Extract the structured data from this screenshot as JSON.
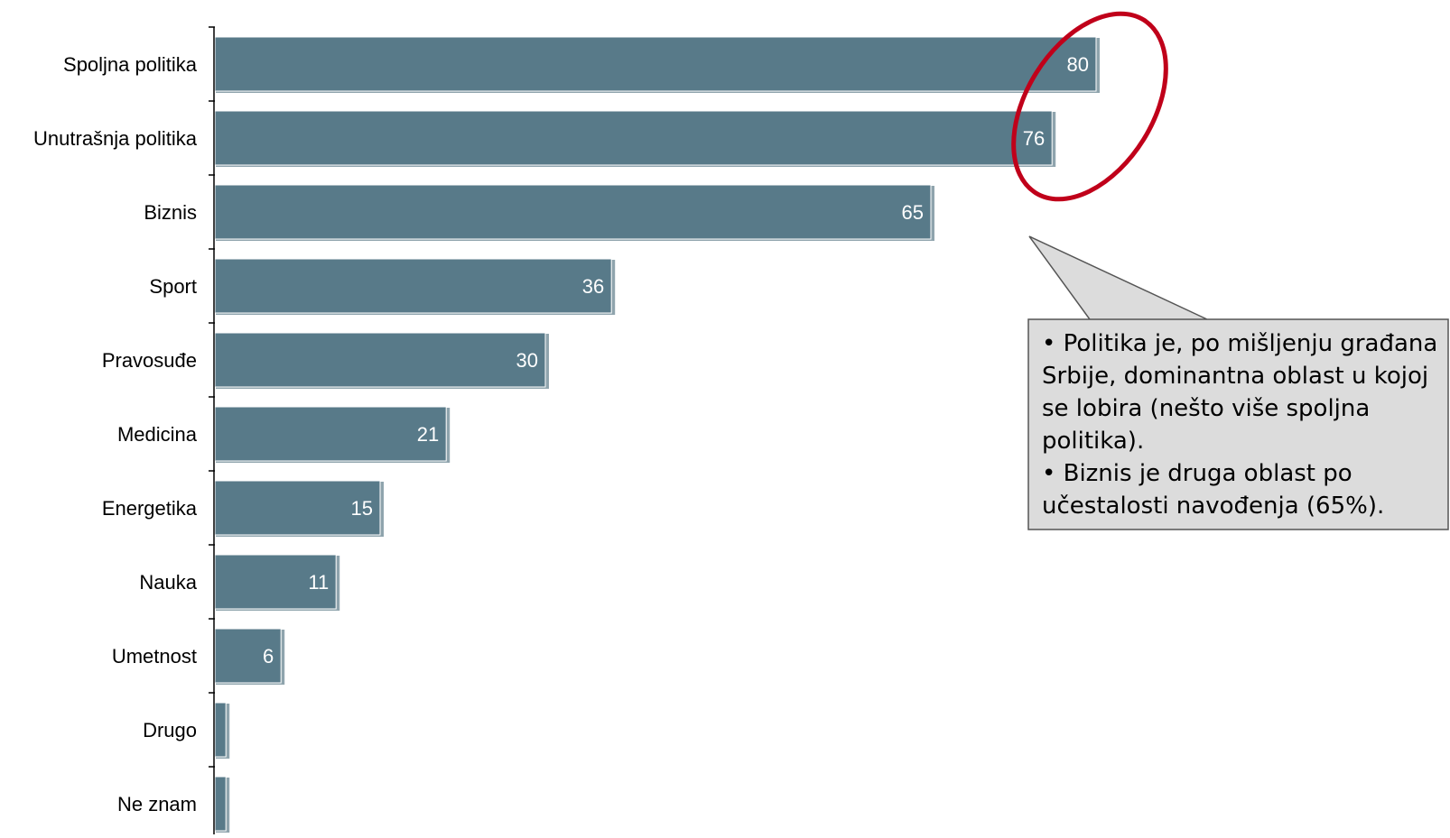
{
  "chart_data": {
    "type": "bar",
    "orientation": "horizontal",
    "categories": [
      "Spoljna politika",
      "Unutrašnja politika",
      "Biznis",
      "Sport",
      "Pravosuđe",
      "Medicina",
      "Energetika",
      "Nauka",
      "Umetnost",
      "Drugo",
      "Ne znam"
    ],
    "values": [
      80,
      76,
      65,
      36,
      30,
      21,
      15,
      11,
      6,
      1,
      1
    ],
    "data_labels": [
      "80",
      "76",
      "65",
      "36",
      "30",
      "21",
      "15",
      "11",
      "6",
      "",
      ""
    ],
    "xlim": [
      0,
      85
    ],
    "bar_color": "#587a89",
    "grid": false,
    "legend": "none"
  },
  "callout": {
    "lines": [
      "• Politika je, po mišljenju građana Srbije, dominantna oblast u kojoj se lobira (nešto više spoljna politika).",
      "• Biznis je druga oblast po učestalosti navođenja (65%)."
    ],
    "fill_color": "#dcdcdc",
    "border_color": "#555555"
  },
  "highlight": {
    "color": "#c0001a",
    "target_categories": [
      "Spoljna politika",
      "Unutrašnja politika"
    ]
  }
}
